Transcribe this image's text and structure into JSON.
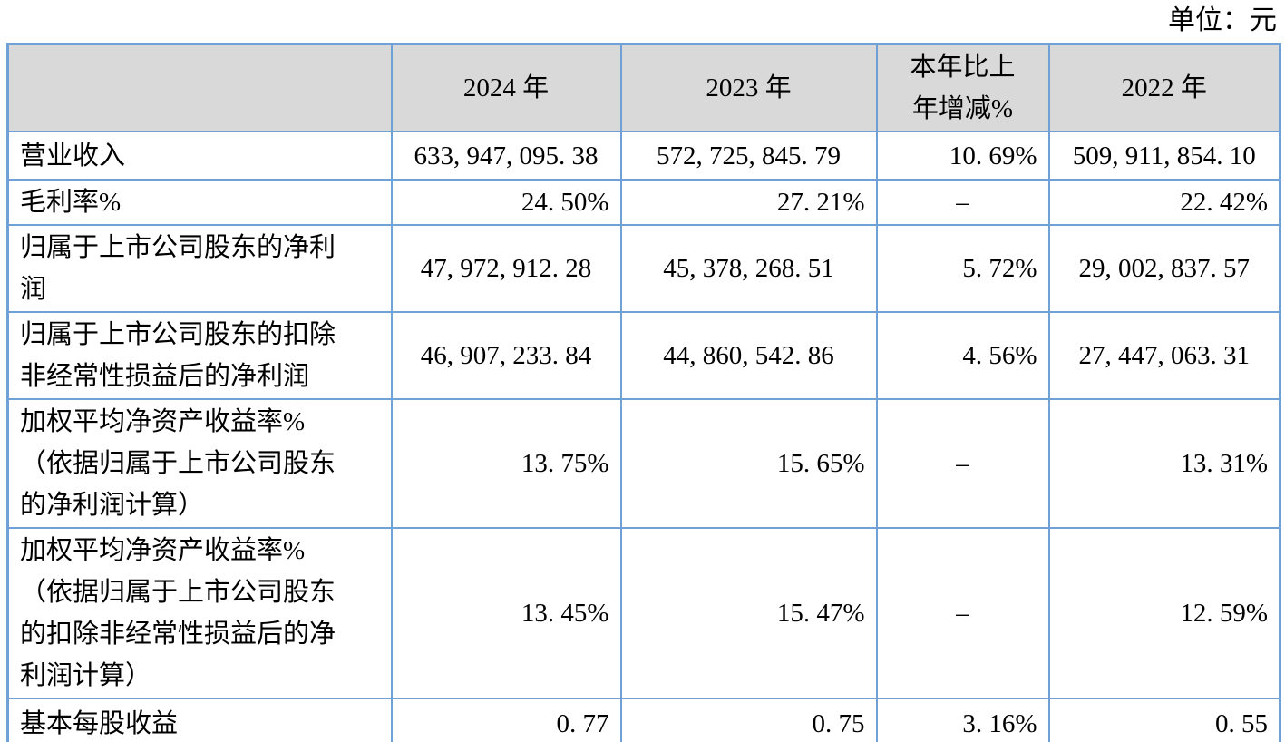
{
  "unit_label": "单位：元",
  "colors": {
    "table_border": "#6fa0d6",
    "header_background": "#d9d9d9",
    "text": "#000000"
  },
  "table": {
    "columns": [
      "",
      "2024 年",
      "2023 年",
      "本年比上\n年增减%",
      "2022 年"
    ],
    "rows": [
      {
        "label": "营业收入",
        "values": [
          "633, 947, 095. 38",
          "572, 725, 845. 79",
          "10. 69%",
          "509, 911, 854. 10"
        ]
      },
      {
        "label": "毛利率%",
        "values": [
          "24. 50%",
          "27. 21%",
          "–",
          "22. 42%"
        ]
      },
      {
        "label": "归属于上市公司股东的净利\n润",
        "values": [
          "47, 972, 912. 28",
          "45, 378, 268. 51",
          "5. 72%",
          "29, 002, 837. 57"
        ]
      },
      {
        "label": "归属于上市公司股东的扣除\n非经常性损益后的净利润",
        "values": [
          "46, 907, 233. 84",
          "44, 860, 542. 86",
          "4. 56%",
          "27, 447, 063. 31"
        ]
      },
      {
        "label": "加权平均净资产收益率%\n（依据归属于上市公司股东\n的净利润计算）",
        "values": [
          "13. 75%",
          "15. 65%",
          "–",
          "13. 31%"
        ]
      },
      {
        "label": "加权平均净资产收益率%\n（依据归属于上市公司股东\n的扣除非经常性损益后的净\n利润计算）",
        "values": [
          "13. 45%",
          "15. 47%",
          "–",
          "12. 59%"
        ]
      },
      {
        "label": "基本每股收益",
        "values": [
          "0. 77",
          "0. 75",
          "3. 16%",
          "0. 55"
        ]
      }
    ]
  }
}
